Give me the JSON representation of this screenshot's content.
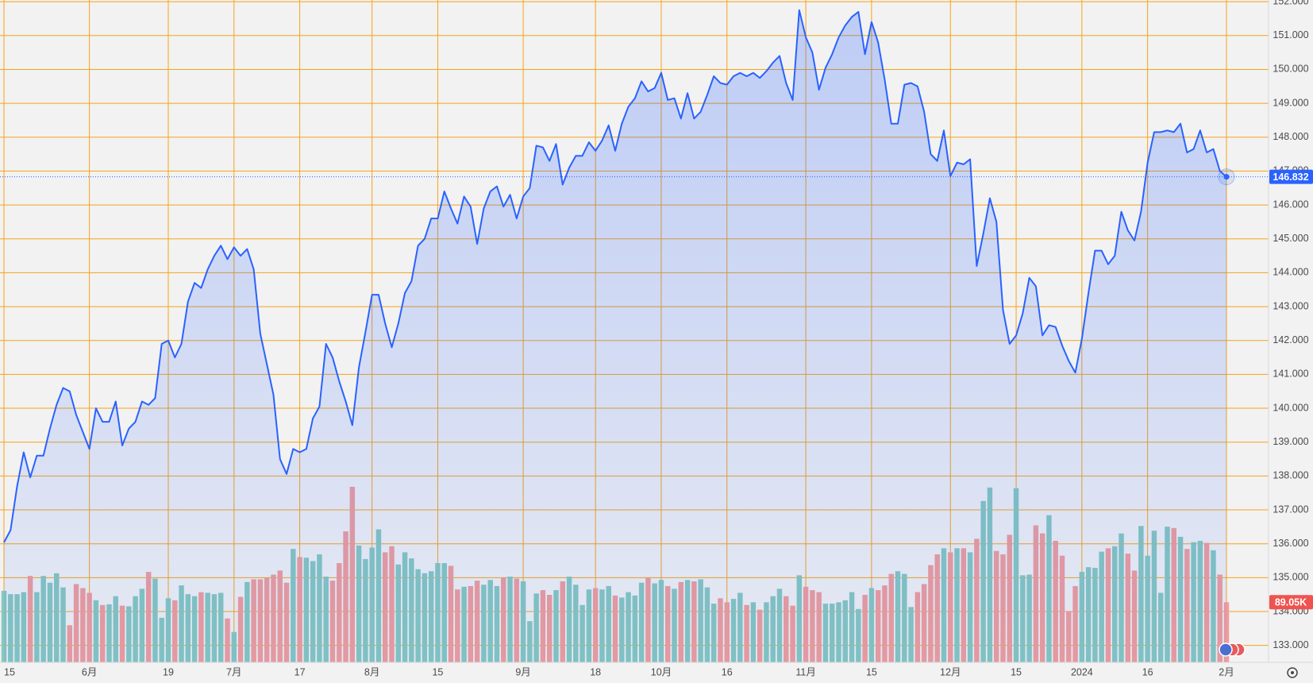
{
  "chart_data": {
    "type": "area",
    "categories": [
      "15",
      null,
      null,
      null,
      null,
      null,
      null,
      null,
      null,
      null,
      null,
      null,
      null,
      "6月",
      null,
      null,
      null,
      null,
      null,
      null,
      null,
      null,
      null,
      null,
      null,
      "19",
      null,
      null,
      null,
      null,
      null,
      null,
      null,
      null,
      null,
      "7月",
      null,
      null,
      null,
      null,
      null,
      null,
      null,
      null,
      null,
      "17",
      null,
      null,
      null,
      null,
      null,
      null,
      null,
      null,
      null,
      null,
      "8月",
      null,
      null,
      null,
      null,
      null,
      null,
      null,
      null,
      null,
      "15",
      null,
      null,
      null,
      null,
      null,
      null,
      null,
      null,
      null,
      null,
      null,
      null,
      "9月",
      null,
      null,
      null,
      null,
      null,
      null,
      null,
      null,
      null,
      null,
      "18",
      null,
      null,
      null,
      null,
      null,
      null,
      null,
      null,
      null,
      "10月",
      null,
      null,
      null,
      null,
      null,
      null,
      null,
      null,
      null,
      "16",
      null,
      null,
      null,
      null,
      null,
      null,
      null,
      null,
      null,
      null,
      null,
      "11月",
      null,
      null,
      null,
      null,
      null,
      null,
      null,
      null,
      null,
      "15",
      null,
      null,
      null,
      null,
      null,
      null,
      null,
      null,
      null,
      null,
      null,
      "12月",
      null,
      null,
      null,
      null,
      null,
      null,
      null,
      null,
      null,
      "15",
      null,
      null,
      null,
      null,
      null,
      null,
      null,
      null,
      null,
      "2024",
      null,
      null,
      null,
      null,
      null,
      null,
      null,
      null,
      null,
      "16",
      null,
      null,
      null,
      null,
      null,
      null,
      null,
      null,
      null,
      null,
      null,
      "2月"
    ],
    "values": [
      136.04,
      136.4,
      137.7,
      138.7,
      137.96,
      138.6,
      138.6,
      139.4,
      140.1,
      140.6,
      140.5,
      139.8,
      139.3,
      138.8,
      140.0,
      139.6,
      139.6,
      140.2,
      138.9,
      139.4,
      139.6,
      140.2,
      140.1,
      140.3,
      141.9,
      142.0,
      141.5,
      141.9,
      143.15,
      143.7,
      143.55,
      144.1,
      144.5,
      144.8,
      144.4,
      144.75,
      144.5,
      144.7,
      144.1,
      142.2,
      141.3,
      140.4,
      138.5,
      138.06,
      138.8,
      138.7,
      138.8,
      139.7,
      140.05,
      141.9,
      141.5,
      140.8,
      140.2,
      139.5,
      141.2,
      142.25,
      143.35,
      143.35,
      142.5,
      141.8,
      142.5,
      143.4,
      143.75,
      144.8,
      145.0,
      145.6,
      145.6,
      146.4,
      145.9,
      145.45,
      146.25,
      145.95,
      144.85,
      145.9,
      146.4,
      146.55,
      145.95,
      146.3,
      145.6,
      146.25,
      146.5,
      147.75,
      147.7,
      147.3,
      147.8,
      146.6,
      147.1,
      147.45,
      147.45,
      147.85,
      147.6,
      147.9,
      148.35,
      147.6,
      148.4,
      148.9,
      149.15,
      149.65,
      149.35,
      149.45,
      149.9,
      149.1,
      149.15,
      148.55,
      149.3,
      148.55,
      148.75,
      149.25,
      149.8,
      149.6,
      149.55,
      149.8,
      149.9,
      149.8,
      149.9,
      149.75,
      149.95,
      150.2,
      150.4,
      149.6,
      149.1,
      151.75,
      150.95,
      150.5,
      149.4,
      150.05,
      150.45,
      150.95,
      151.3,
      151.55,
      151.7,
      150.45,
      151.4,
      150.8,
      149.7,
      148.4,
      148.4,
      149.55,
      149.6,
      149.5,
      148.75,
      147.5,
      147.3,
      148.2,
      146.85,
      147.25,
      147.2,
      147.35,
      144.2,
      145.15,
      146.2,
      145.5,
      142.9,
      141.9,
      142.15,
      142.8,
      143.85,
      143.6,
      142.15,
      142.45,
      142.4,
      141.85,
      141.4,
      141.05,
      142.05,
      143.4,
      144.65,
      144.65,
      144.25,
      144.5,
      145.8,
      145.25,
      144.95,
      145.8,
      147.25,
      148.15,
      148.15,
      148.2,
      148.15,
      148.4,
      147.55,
      147.65,
      148.2,
      147.55,
      147.65,
      147.0,
      146.832
    ],
    "color": "#2962ff",
    "volume": {
      "values": [
        106000,
        101000,
        101000,
        104000,
        128000,
        104000,
        128000,
        118000,
        132000,
        111000,
        55000,
        116000,
        110000,
        103000,
        92000,
        85000,
        86000,
        98000,
        84000,
        83000,
        98000,
        109000,
        134000,
        124000,
        66000,
        95000,
        92000,
        114000,
        101000,
        98000,
        104000,
        103000,
        101000,
        103000,
        65000,
        45000,
        97000,
        119000,
        123000,
        123000,
        125000,
        130000,
        136000,
        118000,
        168000,
        156000,
        155000,
        150000,
        160000,
        127000,
        121000,
        147000,
        194000,
        260000,
        173000,
        153000,
        170000,
        197000,
        163000,
        172000,
        145000,
        163000,
        154000,
        138000,
        132000,
        135000,
        147000,
        147000,
        143000,
        108000,
        112000,
        113000,
        121000,
        115000,
        122000,
        113000,
        126000,
        127000,
        124000,
        120000,
        61000,
        102000,
        107000,
        100000,
        107000,
        120000,
        127000,
        115000,
        85000,
        108000,
        110000,
        108000,
        113000,
        99000,
        96000,
        104000,
        99000,
        118000,
        125000,
        117000,
        122000,
        113000,
        109000,
        119000,
        122000,
        120000,
        123000,
        111000,
        87000,
        95000,
        89000,
        94000,
        103000,
        85000,
        89000,
        78000,
        89000,
        98000,
        109000,
        98000,
        84000,
        129000,
        112000,
        107000,
        104000,
        87000,
        87000,
        89000,
        92000,
        104000,
        79000,
        100000,
        110000,
        107000,
        114000,
        131000,
        135000,
        131000,
        82000,
        104000,
        116000,
        144000,
        160000,
        169000,
        163000,
        169000,
        169000,
        163000,
        183000,
        239000,
        259000,
        165000,
        160000,
        189000,
        258000,
        129000,
        130000,
        203000,
        191000,
        218000,
        180000,
        158000,
        76000,
        113000,
        134000,
        141000,
        140000,
        164000,
        169000,
        172000,
        191000,
        161000,
        136000,
        202000,
        158000,
        195000,
        103000,
        201000,
        199000,
        186000,
        168000,
        178000,
        180000,
        177000,
        166000,
        130000,
        89050
      ],
      "value_labels": [
        null,
        null,
        null,
        null,
        null,
        null,
        null,
        null,
        null,
        null,
        null,
        null,
        null,
        null,
        null,
        null,
        null,
        null,
        null,
        null,
        null,
        null,
        null,
        null,
        null,
        null,
        null,
        null,
        null,
        null,
        null,
        null,
        null,
        null,
        null,
        null,
        null,
        null,
        null,
        null,
        null,
        null,
        null,
        null,
        null,
        null,
        null,
        null,
        null,
        null,
        null,
        null,
        null,
        null,
        null,
        null,
        null,
        null,
        null,
        null,
        null,
        null,
        null,
        null,
        null,
        null,
        null,
        null,
        null,
        null,
        null,
        null,
        null,
        null,
        null,
        null,
        null,
        null,
        null,
        null,
        null,
        null,
        null,
        null,
        null,
        null,
        null,
        null,
        null,
        null,
        null,
        null,
        null,
        null,
        null,
        null,
        null,
        null,
        null,
        null,
        null,
        null,
        null,
        null,
        null,
        null,
        null,
        null,
        null,
        null,
        null,
        null,
        null,
        null,
        null,
        null,
        null,
        null,
        null,
        null,
        null,
        null,
        null,
        null,
        null,
        null,
        null,
        null,
        null,
        null,
        null,
        null,
        null,
        null,
        null,
        null,
        null,
        null,
        null,
        null,
        null,
        null,
        null,
        null,
        null,
        null,
        null,
        null,
        null,
        null,
        null,
        null,
        null,
        null,
        null,
        null,
        null,
        null,
        null,
        null,
        null,
        null,
        null,
        null,
        null,
        null,
        null,
        null,
        null,
        null,
        null,
        null,
        null,
        null,
        null,
        null,
        null,
        null,
        null,
        null,
        null,
        null,
        null,
        null,
        null,
        null,
        "89.05K"
      ],
      "up_color": "#86c7bf",
      "down_color": "#ef9d9b"
    },
    "ylim": [
      132.5,
      152.05
    ],
    "yticks": [
      {
        "value": 133,
        "label": "133.000"
      },
      {
        "value": 134,
        "label": "134.000"
      },
      {
        "value": 135,
        "label": "135.000"
      },
      {
        "value": 136,
        "label": "136.000"
      },
      {
        "value": 137,
        "label": "137.000"
      },
      {
        "value": 138,
        "label": "138.000"
      },
      {
        "value": 139,
        "label": "139.000"
      },
      {
        "value": 140,
        "label": "140.000"
      },
      {
        "value": 141,
        "label": "141.000"
      },
      {
        "value": 142,
        "label": "142.000"
      },
      {
        "value": 143,
        "label": "143.000"
      },
      {
        "value": 144,
        "label": "144.000"
      },
      {
        "value": 145,
        "label": "145.000"
      },
      {
        "value": 146,
        "label": "146.000"
      },
      {
        "value": 147,
        "label": "147.000"
      },
      {
        "value": 148,
        "label": "148.000"
      },
      {
        "value": 149,
        "label": "149.000"
      },
      {
        "value": 150,
        "label": "150.000"
      },
      {
        "value": 151,
        "label": "151.000"
      },
      {
        "value": 152,
        "label": "152.000"
      }
    ],
    "grid": true
  }
}
